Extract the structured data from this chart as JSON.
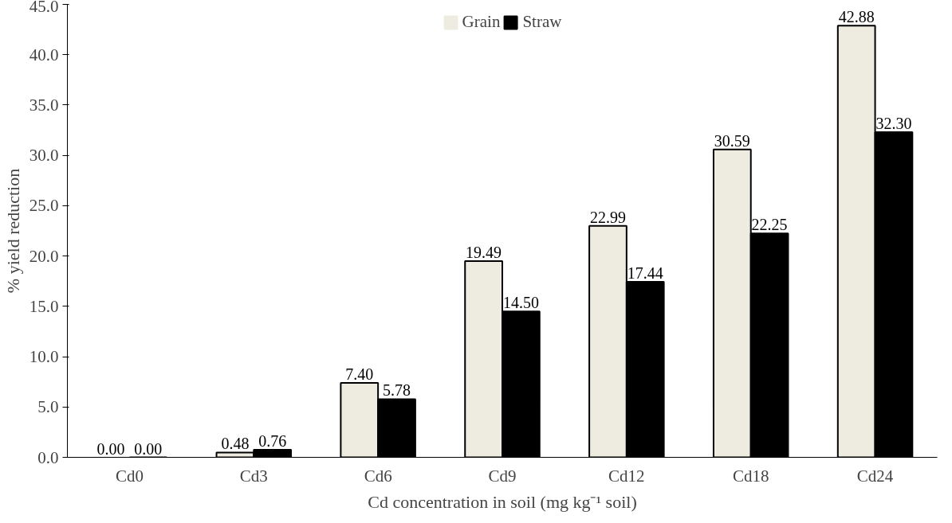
{
  "chart_data": {
    "type": "bar",
    "ylabel": "% yield reduction",
    "xlabel": "Cd concentration in soil (mg kg⁻¹ soil)",
    "categories": [
      "Cd0",
      "Cd3",
      "Cd6",
      "Cd9",
      "Cd12",
      "Cd18",
      "Cd24"
    ],
    "series": [
      {
        "name": "Grain",
        "color": "#eeece1",
        "values": [
          0.0,
          0.48,
          7.4,
          19.49,
          22.99,
          30.59,
          42.88
        ],
        "value_labels": [
          "0.00",
          "0.48",
          "7.40",
          "19.49",
          "22.99",
          "30.59",
          "42.88"
        ]
      },
      {
        "name": "Straw",
        "color": "#000000",
        "values": [
          0.0,
          0.76,
          5.78,
          14.5,
          17.44,
          22.25,
          32.3
        ],
        "value_labels": [
          "0.00",
          "0.76",
          "5.78",
          "14.50",
          "17.44",
          "22.25",
          "32.30"
        ]
      }
    ],
    "ylim": [
      0,
      45
    ],
    "yticks": [
      {
        "value": 0,
        "label": "0.0"
      },
      {
        "value": 5,
        "label": "5.0"
      },
      {
        "value": 10,
        "label": "10.0"
      },
      {
        "value": 15,
        "label": "15.0"
      },
      {
        "value": 20,
        "label": "20.0"
      },
      {
        "value": 25,
        "label": "25.0"
      },
      {
        "value": 30,
        "label": "30.0"
      },
      {
        "value": 35,
        "label": "35.0"
      },
      {
        "value": 40,
        "label": "40.0"
      },
      {
        "value": 45,
        "label": "45.0"
      }
    ],
    "grid": false,
    "legend": "top"
  }
}
